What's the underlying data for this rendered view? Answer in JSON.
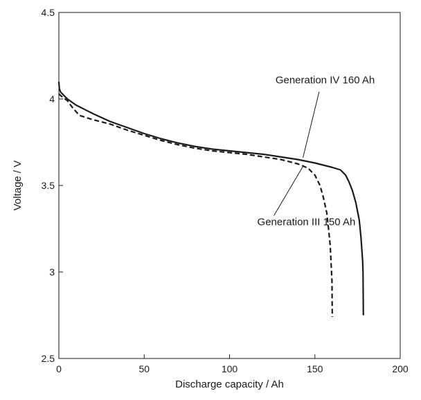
{
  "chart_data": {
    "type": "line",
    "title": "",
    "xlabel": "Discharge capacity / Ah",
    "ylabel": "Voltage / V",
    "xlim": [
      0,
      200
    ],
    "ylim": [
      2.5,
      4.5
    ],
    "xticks": [
      0,
      50,
      100,
      150,
      200
    ],
    "yticks": [
      2.5,
      3,
      3.5,
      4,
      4.5
    ],
    "xtick_labels": [
      "0",
      "50",
      "100",
      "150",
      "200"
    ],
    "ytick_labels": [
      "2.5",
      "3",
      "3.5",
      "4",
      "4.5"
    ],
    "grid": false,
    "legend": "none",
    "series": [
      {
        "name": "Generation IV 160 Ah",
        "style": "solid",
        "color": "#1a1a1a",
        "points": [
          [
            0,
            4.1
          ],
          [
            0.3,
            4.06
          ],
          [
            1,
            4.04
          ],
          [
            5,
            4.0
          ],
          [
            10,
            3.965
          ],
          [
            20,
            3.915
          ],
          [
            30,
            3.87
          ],
          [
            40,
            3.835
          ],
          [
            50,
            3.8
          ],
          [
            60,
            3.77
          ],
          [
            70,
            3.745
          ],
          [
            80,
            3.725
          ],
          [
            90,
            3.71
          ],
          [
            100,
            3.7
          ],
          [
            110,
            3.69
          ],
          [
            120,
            3.68
          ],
          [
            130,
            3.665
          ],
          [
            140,
            3.65
          ],
          [
            150,
            3.63
          ],
          [
            160,
            3.605
          ],
          [
            165,
            3.59
          ],
          [
            168,
            3.56
          ],
          [
            170,
            3.52
          ],
          [
            172,
            3.47
          ],
          [
            174,
            3.4
          ],
          [
            176,
            3.3
          ],
          [
            177,
            3.2
          ],
          [
            178,
            3.06
          ],
          [
            178.2,
            3.0
          ],
          [
            178.4,
            2.75
          ]
        ]
      },
      {
        "name": "Generation III 150 Ah",
        "style": "dashed",
        "color": "#1a1a1a",
        "points": [
          [
            0,
            4.03
          ],
          [
            1,
            4.02
          ],
          [
            5,
            3.99
          ],
          [
            8,
            3.95
          ],
          [
            12,
            3.905
          ],
          [
            20,
            3.88
          ],
          [
            30,
            3.855
          ],
          [
            40,
            3.82
          ],
          [
            50,
            3.79
          ],
          [
            60,
            3.76
          ],
          [
            70,
            3.735
          ],
          [
            80,
            3.715
          ],
          [
            90,
            3.7
          ],
          [
            100,
            3.69
          ],
          [
            110,
            3.68
          ],
          [
            120,
            3.665
          ],
          [
            130,
            3.65
          ],
          [
            140,
            3.625
          ],
          [
            146,
            3.6
          ],
          [
            150,
            3.56
          ],
          [
            153,
            3.5
          ],
          [
            155,
            3.43
          ],
          [
            157,
            3.34
          ],
          [
            158,
            3.25
          ],
          [
            159,
            3.15
          ],
          [
            159.5,
            3.05
          ],
          [
            160,
            2.95
          ],
          [
            160.2,
            2.74
          ]
        ]
      }
    ],
    "annotations": [
      {
        "text": "Generation IV 160 Ah",
        "x": 156,
        "y": 4.09,
        "arrow_to": [
          143,
          3.66
        ],
        "target_series": "Generation IV 160 Ah"
      },
      {
        "text": "Generation III 150 Ah",
        "x": 145,
        "y": 3.27,
        "arrow_to": [
          143,
          3.61
        ],
        "target_series": "Generation III 150 Ah"
      }
    ]
  }
}
